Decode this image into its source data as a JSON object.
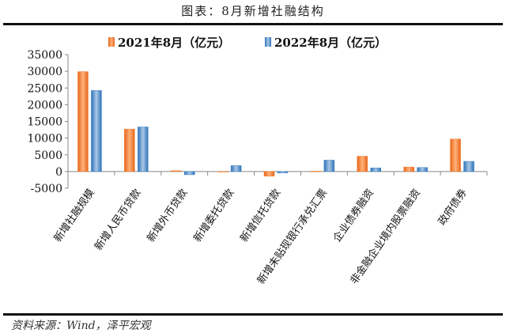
{
  "title": "图表：8月新增社融结构",
  "source": "资料来源：Wind，泽平宏观",
  "chart_data": {
    "type": "bar",
    "title": "",
    "xlabel": "",
    "ylabel": "",
    "ylim": [
      -5000,
      35000
    ],
    "yticks": [
      "35000",
      "30000",
      "25000",
      "20000",
      "15000",
      "10000",
      "5000",
      "0",
      "-5000"
    ],
    "grid": false,
    "legend": "top",
    "categories": [
      "新增社融规模",
      "新增人民币贷款",
      "新增外币贷款",
      "新增委托贷款",
      "新增信托贷款",
      "新增未贴现银行承兑汇票",
      "企业债券融资",
      "非金融企业境内股票融资",
      "政府债券"
    ],
    "series": [
      {
        "name": "2021年8月（亿元）",
        "color": "#f07a28",
        "values": [
          29893,
          12713,
          250,
          -60,
          -1370,
          110,
          4584,
          1352,
          9737
        ]
      },
      {
        "name": "2022年8月（亿元）",
        "color": "#3d85c6",
        "values": [
          24253,
          13345,
          -960,
          1775,
          -413,
          3408,
          1094,
          1219,
          3050
        ]
      }
    ]
  }
}
